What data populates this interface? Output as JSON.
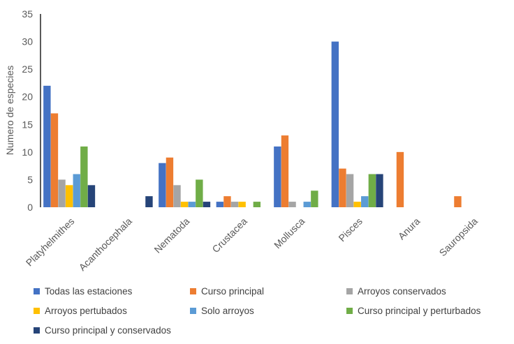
{
  "chart_data": {
    "type": "bar",
    "title": "",
    "xlabel": "",
    "ylabel": "Numero de especies",
    "ylim": [
      0,
      35
    ],
    "yticks": [
      0,
      5,
      10,
      15,
      20,
      25,
      30,
      35
    ],
    "grid": false,
    "legend_position": "bottom",
    "categories": [
      "Platyhelmithes",
      "Acanthocephala",
      "Nematoda",
      "Crustacea",
      "Mollusca",
      "Pisces",
      "Anura",
      "Sauropsida"
    ],
    "series": [
      {
        "name": "Todas las estaciones",
        "color": "#4472C4",
        "values": [
          22,
          0,
          8,
          1,
          11,
          30,
          0,
          0
        ]
      },
      {
        "name": "Curso principal",
        "color": "#ED7D31",
        "values": [
          17,
          0,
          9,
          2,
          13,
          7,
          10,
          2
        ]
      },
      {
        "name": "Arroyos conservados",
        "color": "#A5A5A5",
        "values": [
          5,
          0,
          4,
          1,
          1,
          6,
          0,
          0
        ]
      },
      {
        "name": "Arroyos pertubados",
        "color": "#FFC000",
        "values": [
          4,
          0,
          1,
          1,
          0,
          1,
          0,
          0
        ]
      },
      {
        "name": "Solo arroyos",
        "color": "#5B9BD5",
        "values": [
          6,
          0,
          1,
          0,
          1,
          2,
          0,
          0
        ]
      },
      {
        "name": "Curso principal y perturbados",
        "color": "#70AD47",
        "values": [
          11,
          0,
          5,
          1,
          3,
          6,
          0,
          0
        ]
      },
      {
        "name": "Curso principal y conservados",
        "color": "#264478",
        "values": [
          4,
          2,
          1,
          0,
          0,
          6,
          0,
          0
        ]
      }
    ]
  }
}
